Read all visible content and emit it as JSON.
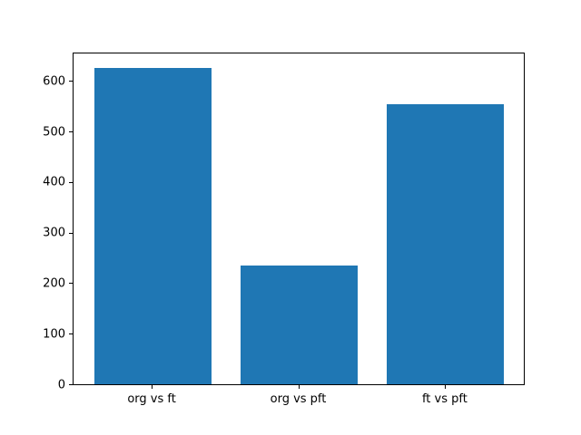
{
  "chart_data": {
    "type": "bar",
    "categories": [
      "org vs ft",
      "org vs pft",
      "ft vs pft"
    ],
    "values": [
      625,
      235,
      554
    ],
    "title": "",
    "xlabel": "",
    "ylabel": "",
    "ylim": [
      0,
      656
    ],
    "yticks": [
      0,
      100,
      200,
      300,
      400,
      500,
      600
    ],
    "grid": false,
    "legend": "none",
    "colors": {
      "bar": "#1f77b4",
      "spine": "#000000",
      "tick_text": "#000000",
      "background": "#ffffff"
    }
  }
}
